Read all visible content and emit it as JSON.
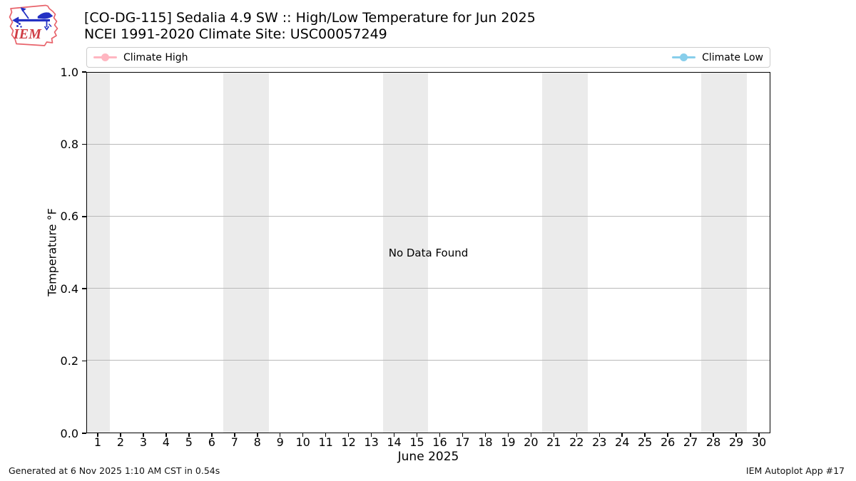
{
  "header": {
    "title_line1": "[CO-DG-115] Sedalia 4.9 SW :: High/Low Temperature for Jun 2025",
    "title_line2": "NCEI 1991-2020 Climate Site: USC00057249",
    "logo_text": "IEM"
  },
  "legend": {
    "items": [
      {
        "label": "Climate High",
        "color": "#ffb6c1"
      },
      {
        "label": "Climate Low",
        "color": "#87ceeb"
      }
    ]
  },
  "chart_data": {
    "type": "line",
    "title": "[CO-DG-115] Sedalia 4.9 SW :: High/Low Temperature for Jun 2025",
    "subtitle": "NCEI 1991-2020 Climate Site: USC00057249",
    "xlabel": "June 2025",
    "ylabel": "Temperature °F",
    "xlim": [
      0.5,
      30.5
    ],
    "ylim": [
      0.0,
      1.0
    ],
    "x_ticks": [
      1,
      2,
      3,
      4,
      5,
      6,
      7,
      8,
      9,
      10,
      11,
      12,
      13,
      14,
      15,
      16,
      17,
      18,
      19,
      20,
      21,
      22,
      23,
      24,
      25,
      26,
      27,
      28,
      29,
      30
    ],
    "y_ticks": [
      0.0,
      0.2,
      0.4,
      0.6,
      0.8,
      1.0
    ],
    "y_tick_labels": [
      "0.0",
      "0.2",
      "0.4",
      "0.6",
      "0.8",
      "1.0"
    ],
    "grid": "horizontal",
    "legend_position": "top expanded row",
    "series": [
      {
        "name": "Climate High",
        "color": "#ffb6c1",
        "x": [],
        "values": []
      },
      {
        "name": "Climate Low",
        "color": "#87ceeb",
        "x": [],
        "values": []
      }
    ],
    "no_data_text": "No Data Found",
    "weekend_bands_x": [
      [
        0.5,
        1.5
      ],
      [
        6.5,
        8.5
      ],
      [
        13.5,
        15.5
      ],
      [
        20.5,
        22.5
      ],
      [
        27.5,
        29.5
      ]
    ],
    "band_color": "#ebebeb",
    "gridline_color": "#b9b9b9"
  },
  "footer": {
    "left": "Generated at 6 Nov 2025 1:10 AM CST in 0.54s",
    "right": "IEM Autoplot App #17"
  }
}
